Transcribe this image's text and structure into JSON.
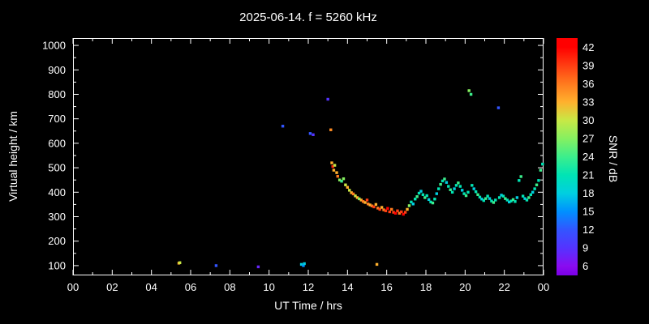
{
  "title": "2025-06-14. f = 5260 kHz",
  "colors": {
    "background": "#000000",
    "axis": "#ffffff",
    "text": "#ffffff"
  },
  "chart_data": {
    "type": "scatter",
    "title": "2025-06-14. f = 5260 kHz",
    "xlabel": "UT Time / hrs",
    "ylabel": "Virtual height / km",
    "xlim": [
      0,
      24
    ],
    "ylim": [
      60,
      1030
    ],
    "grid": false,
    "x_ticks": {
      "values": [
        0,
        2,
        4,
        6,
        8,
        10,
        12,
        14,
        16,
        18,
        20,
        22,
        24
      ],
      "labels": [
        "00",
        "02",
        "04",
        "06",
        "08",
        "10",
        "12",
        "14",
        "16",
        "18",
        "20",
        "22",
        "00"
      ],
      "minor": [
        1,
        3,
        5,
        7,
        9,
        11,
        13,
        15,
        17,
        19,
        21,
        23
      ]
    },
    "y_ticks": {
      "values": [
        100,
        200,
        300,
        400,
        500,
        600,
        700,
        800,
        900,
        1000
      ],
      "labels": [
        "100",
        "200",
        "300",
        "400",
        "500",
        "600",
        "700",
        "800",
        "900",
        "1000"
      ],
      "minor": [
        150,
        250,
        350,
        450,
        550,
        650,
        750,
        850,
        950
      ]
    },
    "colorbar": {
      "label": "SNR / dB",
      "range": [
        4.5,
        43.5
      ],
      "tick_values": [
        6,
        9,
        12,
        15,
        18,
        21,
        24,
        27,
        30,
        33,
        36,
        39,
        42
      ],
      "stops": [
        {
          "v": 4.5,
          "color": "#7a00e6"
        },
        {
          "v": 6,
          "color": "#8a0bf0"
        },
        {
          "v": 9,
          "color": "#5533ff"
        },
        {
          "v": 12,
          "color": "#3355ff"
        },
        {
          "v": 15,
          "color": "#0090ff"
        },
        {
          "v": 18,
          "color": "#00cfe0"
        },
        {
          "v": 21,
          "color": "#00e4b4"
        },
        {
          "v": 24,
          "color": "#3cee8c"
        },
        {
          "v": 27,
          "color": "#86f060"
        },
        {
          "v": 30,
          "color": "#c8e845"
        },
        {
          "v": 33,
          "color": "#ffb02d"
        },
        {
          "v": 36,
          "color": "#ff7a1e"
        },
        {
          "v": 39,
          "color": "#ff3d12"
        },
        {
          "v": 42,
          "color": "#ff0000"
        },
        {
          "v": 43.5,
          "color": "#ff0000"
        }
      ]
    },
    "points_format": "[ut_hour, virtual_height_km, snr_db]",
    "points": [
      [
        5.4,
        110,
        33
      ],
      [
        5.45,
        112,
        30
      ],
      [
        7.3,
        100,
        12
      ],
      [
        9.45,
        95,
        8
      ],
      [
        10.7,
        670,
        12
      ],
      [
        11.65,
        105,
        18
      ],
      [
        11.75,
        100,
        15
      ],
      [
        11.8,
        108,
        18
      ],
      [
        12.1,
        640,
        12
      ],
      [
        12.25,
        635,
        9
      ],
      [
        13.0,
        780,
        9
      ],
      [
        13.15,
        655,
        35
      ],
      [
        13.2,
        520,
        33
      ],
      [
        13.25,
        505,
        40
      ],
      [
        13.3,
        490,
        33
      ],
      [
        13.35,
        510,
        30
      ],
      [
        13.45,
        480,
        33
      ],
      [
        13.5,
        465,
        36
      ],
      [
        13.6,
        450,
        27
      ],
      [
        13.7,
        445,
        24
      ],
      [
        13.8,
        455,
        27
      ],
      [
        13.9,
        430,
        30
      ],
      [
        14.0,
        420,
        33
      ],
      [
        14.1,
        408,
        30
      ],
      [
        14.2,
        398,
        33
      ],
      [
        14.3,
        393,
        36
      ],
      [
        14.4,
        385,
        30
      ],
      [
        14.5,
        378,
        33
      ],
      [
        14.6,
        373,
        27
      ],
      [
        14.7,
        368,
        33
      ],
      [
        14.8,
        362,
        36
      ],
      [
        14.9,
        358,
        33
      ],
      [
        15.0,
        368,
        39
      ],
      [
        15.05,
        352,
        36
      ],
      [
        15.15,
        348,
        33
      ],
      [
        15.25,
        344,
        36
      ],
      [
        15.35,
        340,
        39
      ],
      [
        15.45,
        350,
        33
      ],
      [
        15.5,
        105,
        33
      ],
      [
        15.55,
        335,
        36
      ],
      [
        15.65,
        330,
        39
      ],
      [
        15.75,
        338,
        33
      ],
      [
        15.85,
        328,
        36
      ],
      [
        15.95,
        324,
        39
      ],
      [
        16.05,
        334,
        42
      ],
      [
        16.15,
        320,
        39
      ],
      [
        16.25,
        330,
        36
      ],
      [
        16.35,
        318,
        39
      ],
      [
        16.45,
        314,
        42
      ],
      [
        16.55,
        324,
        39
      ],
      [
        16.65,
        314,
        36
      ],
      [
        16.75,
        320,
        39
      ],
      [
        16.85,
        310,
        42
      ],
      [
        16.95,
        318,
        39
      ],
      [
        17.05,
        330,
        33
      ],
      [
        17.15,
        345,
        27
      ],
      [
        17.25,
        360,
        21
      ],
      [
        17.35,
        352,
        18
      ],
      [
        17.45,
        372,
        21
      ],
      [
        17.55,
        382,
        24
      ],
      [
        17.65,
        396,
        21
      ],
      [
        17.75,
        404,
        18
      ],
      [
        17.85,
        390,
        21
      ],
      [
        17.95,
        378,
        24
      ],
      [
        18.05,
        386,
        21
      ],
      [
        18.15,
        370,
        18
      ],
      [
        18.25,
        360,
        21
      ],
      [
        18.35,
        356,
        24
      ],
      [
        18.45,
        372,
        21
      ],
      [
        18.55,
        394,
        18
      ],
      [
        18.65,
        414,
        21
      ],
      [
        18.75,
        432,
        24
      ],
      [
        18.85,
        446,
        21
      ],
      [
        18.95,
        454,
        24
      ],
      [
        19.05,
        440,
        18
      ],
      [
        19.15,
        424,
        21
      ],
      [
        19.25,
        410,
        24
      ],
      [
        19.35,
        400,
        21
      ],
      [
        19.45,
        414,
        18
      ],
      [
        19.55,
        428,
        21
      ],
      [
        19.65,
        438,
        24
      ],
      [
        19.75,
        424,
        21
      ],
      [
        19.85,
        408,
        18
      ],
      [
        19.95,
        394,
        21
      ],
      [
        20.05,
        386,
        24
      ],
      [
        20.15,
        400,
        21
      ],
      [
        20.2,
        815,
        27
      ],
      [
        20.3,
        800,
        24
      ],
      [
        20.35,
        428,
        21
      ],
      [
        20.45,
        414,
        18
      ],
      [
        20.55,
        402,
        21
      ],
      [
        20.65,
        390,
        24
      ],
      [
        20.75,
        380,
        21
      ],
      [
        20.85,
        372,
        18
      ],
      [
        20.95,
        366,
        21
      ],
      [
        21.05,
        374,
        24
      ],
      [
        21.15,
        384,
        21
      ],
      [
        21.25,
        374,
        18
      ],
      [
        21.35,
        364,
        21
      ],
      [
        21.45,
        358,
        24
      ],
      [
        21.55,
        368,
        21
      ],
      [
        21.7,
        745,
        12
      ],
      [
        21.75,
        378,
        21
      ],
      [
        21.85,
        388,
        18
      ],
      [
        21.95,
        384,
        21
      ],
      [
        22.05,
        374,
        24
      ],
      [
        22.15,
        368,
        21
      ],
      [
        22.25,
        360,
        18
      ],
      [
        22.35,
        364,
        21
      ],
      [
        22.45,
        370,
        24
      ],
      [
        22.55,
        362,
        21
      ],
      [
        22.65,
        378,
        18
      ],
      [
        22.75,
        448,
        21
      ],
      [
        22.85,
        464,
        24
      ],
      [
        22.95,
        384,
        21
      ],
      [
        23.05,
        374,
        18
      ],
      [
        23.15,
        368,
        21
      ],
      [
        23.25,
        378,
        24
      ],
      [
        23.35,
        390,
        21
      ],
      [
        23.45,
        400,
        18
      ],
      [
        23.55,
        414,
        21
      ],
      [
        23.65,
        430,
        24
      ],
      [
        23.75,
        448,
        21
      ],
      [
        23.85,
        490,
        24
      ],
      [
        23.95,
        515,
        21
      ]
    ]
  }
}
